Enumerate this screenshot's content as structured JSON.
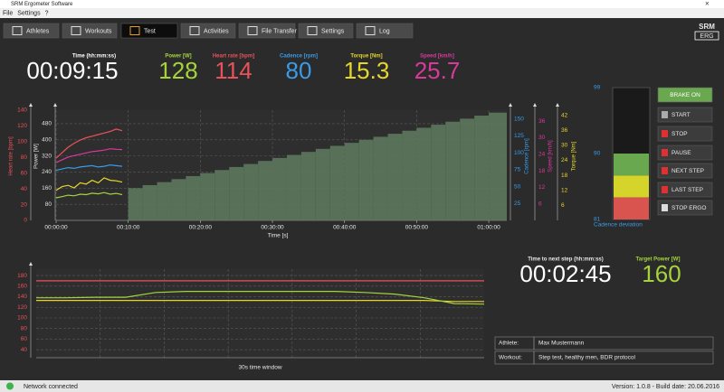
{
  "window": {
    "title": "SRM Ergometer Software",
    "menu": [
      "File",
      "Settings",
      "?"
    ]
  },
  "tabs": [
    "Athletes",
    "Workouts",
    "Test",
    "Activities",
    "File Transfer",
    "Settings",
    "Log"
  ],
  "active_tab": 2,
  "logo": [
    "SRM",
    "ERG"
  ],
  "metrics": [
    {
      "label": "Time (hh:mm:ss)",
      "value": "00:09:15",
      "color": "#ffffff"
    },
    {
      "label": "Power [W]",
      "value": 128,
      "color": "#a6d33c"
    },
    {
      "label": "Heart rate [bpm]",
      "value": 114,
      "color": "#e8525a"
    },
    {
      "label": "Cadence [rpm]",
      "value": 80,
      "color": "#3a9be8"
    },
    {
      "label": "Torque [Nm]",
      "value": 15.3,
      "color": "#e6d62c"
    },
    {
      "label": "Speed [km/h]",
      "value": 25.7,
      "color": "#d8399a"
    }
  ],
  "chart_data": [
    {
      "type": "line",
      "x_label": "Time [s]",
      "xlim": [
        0,
        3750
      ],
      "xticks": [
        {
          "value": 0,
          "label": "00:00:00"
        },
        {
          "value": 600,
          "label": "00:10:00"
        },
        {
          "value": 1200,
          "label": "00:20:00"
        },
        {
          "value": 1800,
          "label": "00:30:00"
        },
        {
          "value": 2400,
          "label": "00:40:00"
        },
        {
          "value": 3000,
          "label": "00:50:00"
        },
        {
          "value": 3600,
          "label": "01:00:00"
        }
      ],
      "axes": [
        {
          "id": "hr",
          "label": "Heart rate [bpm]",
          "color": "#e8525a",
          "ylim": [
            0,
            140
          ],
          "yticks": [
            0,
            20,
            40,
            60,
            80,
            100,
            120,
            140
          ]
        },
        {
          "id": "power",
          "label": "Power [W]",
          "color": "#e0e0e0",
          "ylim": [
            0,
            547
          ],
          "yticks": [
            80,
            160,
            240,
            320,
            400,
            480
          ],
          "grid": true
        },
        {
          "id": "cadence",
          "label": "Cadence [rpm]",
          "color": "#3a9be8",
          "ylim": [
            0,
            163
          ],
          "yticks": [
            25,
            50,
            75,
            100,
            125,
            150
          ]
        },
        {
          "id": "speed",
          "label": "Speed [km/h]",
          "color": "#d8399a",
          "ylim": [
            0,
            40
          ],
          "yticks": [
            6,
            12,
            18,
            24,
            30,
            36
          ]
        },
        {
          "id": "torque",
          "label": "Torque [Nm]",
          "color": "#e6d62c",
          "ylim": [
            0,
            44
          ],
          "yticks": [
            6,
            12,
            18,
            24,
            30,
            36,
            42
          ]
        }
      ],
      "series": [
        {
          "axis": "power",
          "step": true,
          "color": "#5f7a5f",
          "x": [
            600,
            720,
            840,
            960,
            1080,
            1200,
            1320,
            1440,
            1560,
            1680,
            1800,
            1920,
            2040,
            2160,
            2280,
            2400,
            2520,
            2640,
            2760,
            2880,
            3000,
            3120,
            3240,
            3360,
            3480,
            3600
          ],
          "values": [
            160,
            175,
            190,
            205,
            220,
            235,
            250,
            265,
            280,
            295,
            310,
            325,
            340,
            355,
            370,
            385,
            400,
            415,
            430,
            445,
            460,
            475,
            490,
            505,
            520,
            535
          ]
        },
        {
          "axis": "hr",
          "color": "#e8525a",
          "x": [
            0,
            50,
            100,
            150,
            200,
            250,
            300,
            350,
            400,
            450,
            500,
            550
          ],
          "values": [
            79,
            86,
            93,
            98,
            102,
            105,
            107,
            109,
            111,
            113,
            116,
            114
          ]
        },
        {
          "axis": "speed",
          "color": "#d8399a",
          "x": [
            0,
            50,
            100,
            150,
            200,
            250,
            300,
            350,
            400,
            450,
            500,
            550
          ],
          "values": [
            21,
            22,
            23,
            23.5,
            24,
            24.5,
            25,
            25.2,
            25.5,
            26,
            25.8,
            25.7
          ]
        },
        {
          "axis": "cadence",
          "color": "#3a9be8",
          "x": [
            0,
            50,
            100,
            150,
            200,
            250,
            300,
            350,
            400,
            450,
            500,
            550
          ],
          "values": [
            74,
            76,
            78,
            77,
            79,
            80,
            81,
            79,
            80,
            82,
            81,
            80
          ]
        },
        {
          "axis": "torque",
          "color": "#e6d62c",
          "x": [
            0,
            50,
            100,
            150,
            200,
            250,
            300,
            350,
            400,
            450,
            500,
            550
          ],
          "values": [
            12,
            13.5,
            14,
            13,
            15,
            14.5,
            16,
            15,
            17,
            16,
            15.8,
            15.3
          ]
        },
        {
          "axis": "power",
          "color": "#a6d33c",
          "x": [
            0,
            50,
            100,
            150,
            200,
            250,
            300,
            350,
            400,
            450,
            500,
            550
          ],
          "values": [
            112,
            118,
            125,
            122,
            130,
            128,
            135,
            132,
            138,
            130,
            134,
            128
          ]
        }
      ]
    },
    {
      "type": "line",
      "x_label": "30s time window",
      "xlim": [
        0,
        30
      ],
      "ylim": [
        25,
        192
      ],
      "yticks": [
        40,
        60,
        80,
        100,
        120,
        140,
        160,
        180
      ],
      "tick_color": "#e8525a",
      "grid": true,
      "series": [
        {
          "color": "#e8525a",
          "x": [
            0,
            2,
            4,
            6,
            8,
            10,
            12,
            14,
            16,
            18,
            20,
            22,
            24,
            26,
            28,
            30
          ],
          "values": [
            170,
            170,
            170,
            170,
            170,
            170,
            170,
            170,
            170,
            170,
            170,
            170,
            170,
            170,
            170,
            170
          ]
        },
        {
          "color": "#e6d62c",
          "x": [
            0,
            2,
            4,
            6,
            8,
            10,
            12,
            14,
            16,
            18,
            20,
            22,
            24,
            26,
            28,
            30
          ],
          "values": [
            133,
            133,
            133,
            133,
            133,
            133,
            133,
            133,
            133,
            133,
            133,
            133,
            133,
            133,
            131,
            131
          ]
        },
        {
          "color": "#a6d33c",
          "x": [
            0,
            2,
            4,
            6,
            8,
            10,
            12,
            14,
            16,
            18,
            20,
            22,
            24,
            26,
            28,
            30
          ],
          "values": [
            138,
            138,
            139,
            139,
            148,
            150,
            150,
            150,
            150,
            150,
            150,
            148,
            145,
            138,
            127,
            126
          ]
        }
      ]
    }
  ],
  "cadence_gauge": {
    "label": "Cadence deviation",
    "ylim": [
      81,
      99
    ],
    "yticks": [
      81,
      90,
      99
    ],
    "tick_color": "#3a9be8",
    "bands": [
      {
        "from": 87,
        "to": 90,
        "color": "#6aa84f"
      },
      {
        "from": 84,
        "to": 87,
        "color": "#d4d42a"
      },
      {
        "from": 81,
        "to": 84,
        "color": "#d9534f"
      }
    ]
  },
  "controls": [
    "BRAKE ON",
    "START",
    "STOP",
    "PAUSE",
    "NEXT STEP",
    "LAST STEP",
    "STOP ERGO"
  ],
  "next_step": {
    "label": "Time to next step (hh:mm:ss)",
    "value": "00:02:45",
    "color": "#ffffff"
  },
  "target_power": {
    "label": "Target Power [W]",
    "value": 160,
    "color": "#a6d33c"
  },
  "info": [
    {
      "label": "Athlete:",
      "value": "Max Mustermann"
    },
    {
      "label": "Workout:",
      "value": "Step test, healthy men, BDR protocol"
    }
  ],
  "status": {
    "network": "Network connected",
    "version": "Version: 1.0.8 - Build date: 20.06.2016"
  }
}
